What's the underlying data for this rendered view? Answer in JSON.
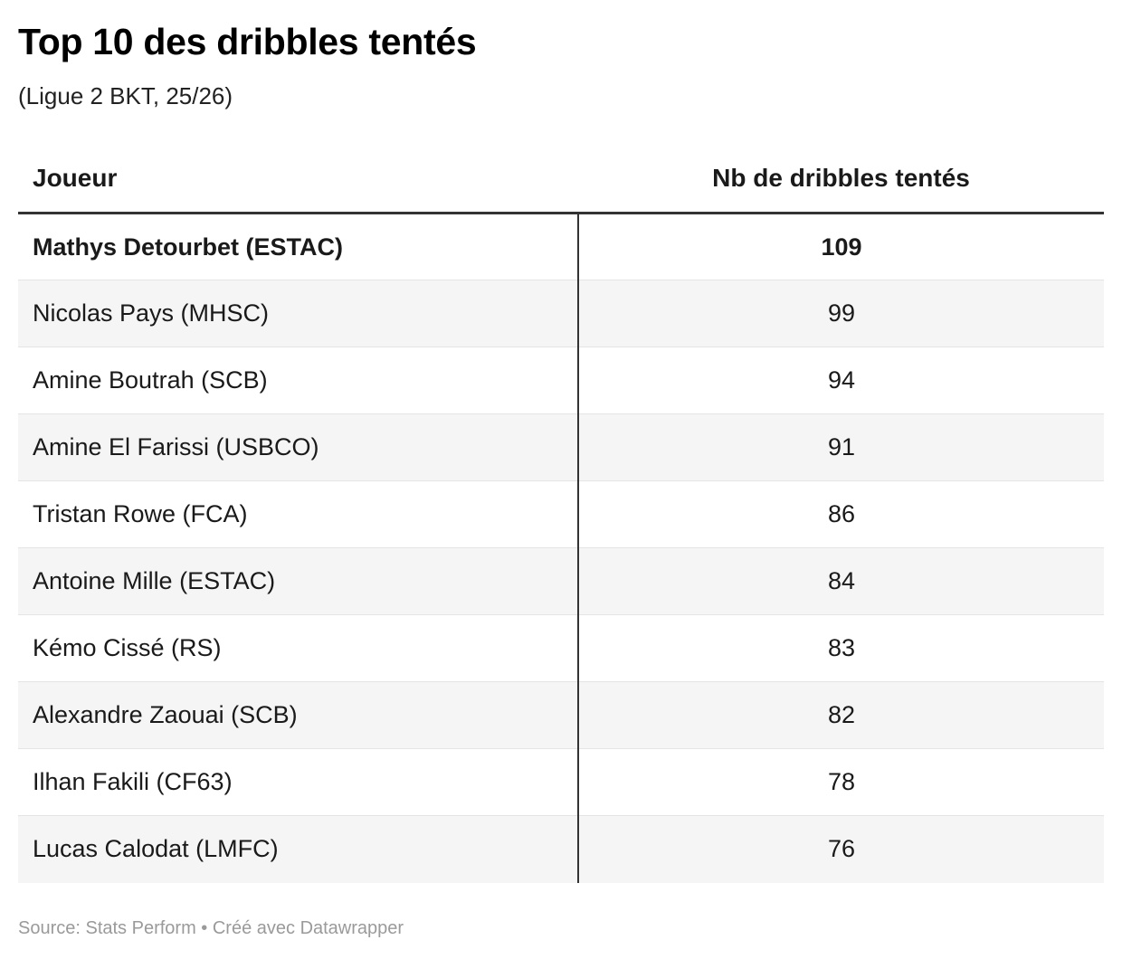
{
  "header": {
    "title": "Top 10 des dribbles tentés",
    "subtitle": "(Ligue 2 BKT, 25/26)"
  },
  "footer": {
    "source": "Source: Stats Perform • Créé avec Datawrapper"
  },
  "colors": {
    "text": "#1a1a1a",
    "header_rule": "#333333",
    "row_stripe": "#f5f5f5",
    "row_divider": "#e4e4e4",
    "footer_text": "#9a9a9a"
  },
  "chart_data": {
    "type": "table",
    "title": "Top 10 des dribbles tentés",
    "subtitle": "(Ligue 2 BKT, 25/26)",
    "columns": [
      "Joueur",
      "Nb de dribbles tentés"
    ],
    "rows": [
      {
        "player": "Mathys Detourbet (ESTAC)",
        "value": "109",
        "highlight": true
      },
      {
        "player": "Nicolas Pays (MHSC)",
        "value": "99",
        "highlight": false
      },
      {
        "player": "Amine Boutrah (SCB)",
        "value": "94",
        "highlight": false
      },
      {
        "player": "Amine El Farissi (USBCO)",
        "value": "91",
        "highlight": false
      },
      {
        "player": "Tristan Rowe (FCA)",
        "value": "86",
        "highlight": false
      },
      {
        "player": "Antoine Mille (ESTAC)",
        "value": "84",
        "highlight": false
      },
      {
        "player": "Kémo Cissé (RS)",
        "value": "83",
        "highlight": false
      },
      {
        "player": "Alexandre Zaouai (SCB)",
        "value": "82",
        "highlight": false
      },
      {
        "player": "Ilhan Fakili (CF63)",
        "value": "78",
        "highlight": false
      },
      {
        "player": "Lucas Calodat (LMFC)",
        "value": "76",
        "highlight": false
      }
    ]
  }
}
